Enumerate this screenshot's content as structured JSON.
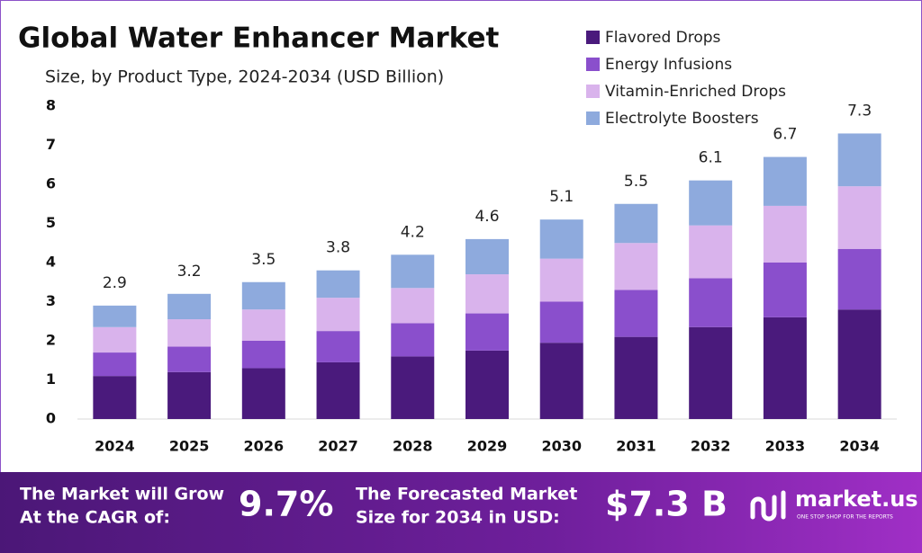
{
  "chart_data": {
    "type": "stacked_bar",
    "title": "Global Water Enhancer Market",
    "subtitle": "Size, by Product Type, 2024-2034 (USD Billion)",
    "categories": [
      "2024",
      "2025",
      "2026",
      "2027",
      "2028",
      "2029",
      "2030",
      "2031",
      "2032",
      "2033",
      "2034"
    ],
    "series": [
      {
        "name": "Flavored Drops",
        "color": "#4a1a7c",
        "values": [
          1.1,
          1.2,
          1.3,
          1.45,
          1.6,
          1.75,
          1.95,
          2.1,
          2.35,
          2.6,
          2.8
        ]
      },
      {
        "name": "Energy Infusions",
        "color": "#8a4fcc",
        "values": [
          0.6,
          0.65,
          0.7,
          0.8,
          0.85,
          0.95,
          1.05,
          1.2,
          1.25,
          1.4,
          1.55
        ]
      },
      {
        "name": "Vitamin-Enriched Drops",
        "color": "#d9b3ec",
        "values": [
          0.65,
          0.7,
          0.8,
          0.85,
          0.9,
          1.0,
          1.1,
          1.2,
          1.35,
          1.45,
          1.6
        ]
      },
      {
        "name": "Electrolyte Boosters",
        "color": "#8eaadd",
        "values": [
          0.55,
          0.65,
          0.7,
          0.7,
          0.85,
          0.9,
          1.0,
          1.0,
          1.15,
          1.25,
          1.35
        ]
      }
    ],
    "totals": [
      2.9,
      3.2,
      3.5,
      3.8,
      4.2,
      4.6,
      5.1,
      5.5,
      6.1,
      6.7,
      7.3
    ],
    "ylim": [
      0,
      8
    ],
    "yticks": [
      0,
      1,
      2,
      3,
      4,
      5,
      6,
      7,
      8
    ],
    "grid": false,
    "legend": "top-right"
  },
  "footer": {
    "cagr_text": [
      "The Market will Grow",
      "At the CAGR of:"
    ],
    "cagr_value": "9.7%",
    "forecast_text": [
      "The Forecasted Market",
      "Size for 2034 in USD:"
    ],
    "forecast_value": "$7.3 B",
    "brand": "market.us",
    "tagline": "ONE STOP SHOP FOR THE REPORTS"
  }
}
